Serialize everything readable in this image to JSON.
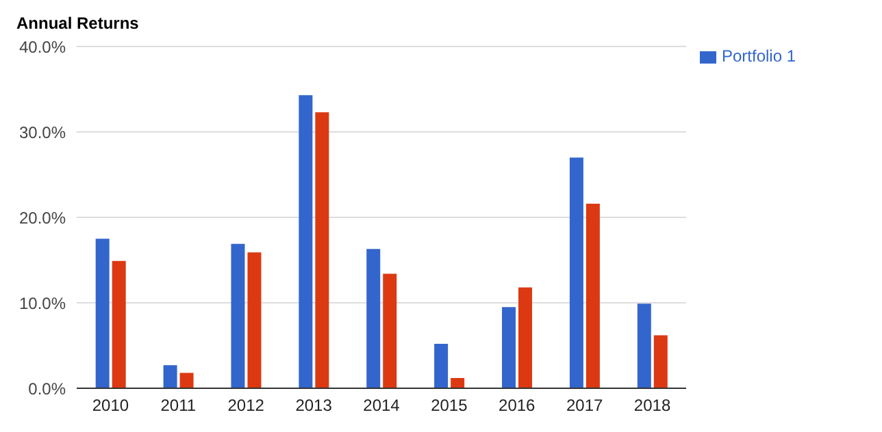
{
  "chart_data": {
    "type": "bar",
    "title": "Annual Returns",
    "categories": [
      "2010",
      "2011",
      "2012",
      "2013",
      "2014",
      "2015",
      "2016",
      "2017",
      "2018"
    ],
    "series": [
      {
        "name": "Portfolio 1",
        "color": "#3366cc",
        "values": [
          17.5,
          2.7,
          16.9,
          34.3,
          16.3,
          5.2,
          9.5,
          27.0,
          9.9
        ]
      },
      {
        "color": "#dc3912",
        "values": [
          14.9,
          1.8,
          15.9,
          32.3,
          13.4,
          1.2,
          11.8,
          21.6,
          6.2
        ]
      }
    ],
    "ylim": [
      0,
      40
    ],
    "yticks": [
      {
        "value": 0,
        "label": "0.0%"
      },
      {
        "value": 10,
        "label": "10.0%"
      },
      {
        "value": 20,
        "label": "20.0%"
      },
      {
        "value": 30,
        "label": "30.0%"
      },
      {
        "value": 40,
        "label": "40.0%"
      }
    ],
    "grid": "y",
    "legend": "top right"
  }
}
